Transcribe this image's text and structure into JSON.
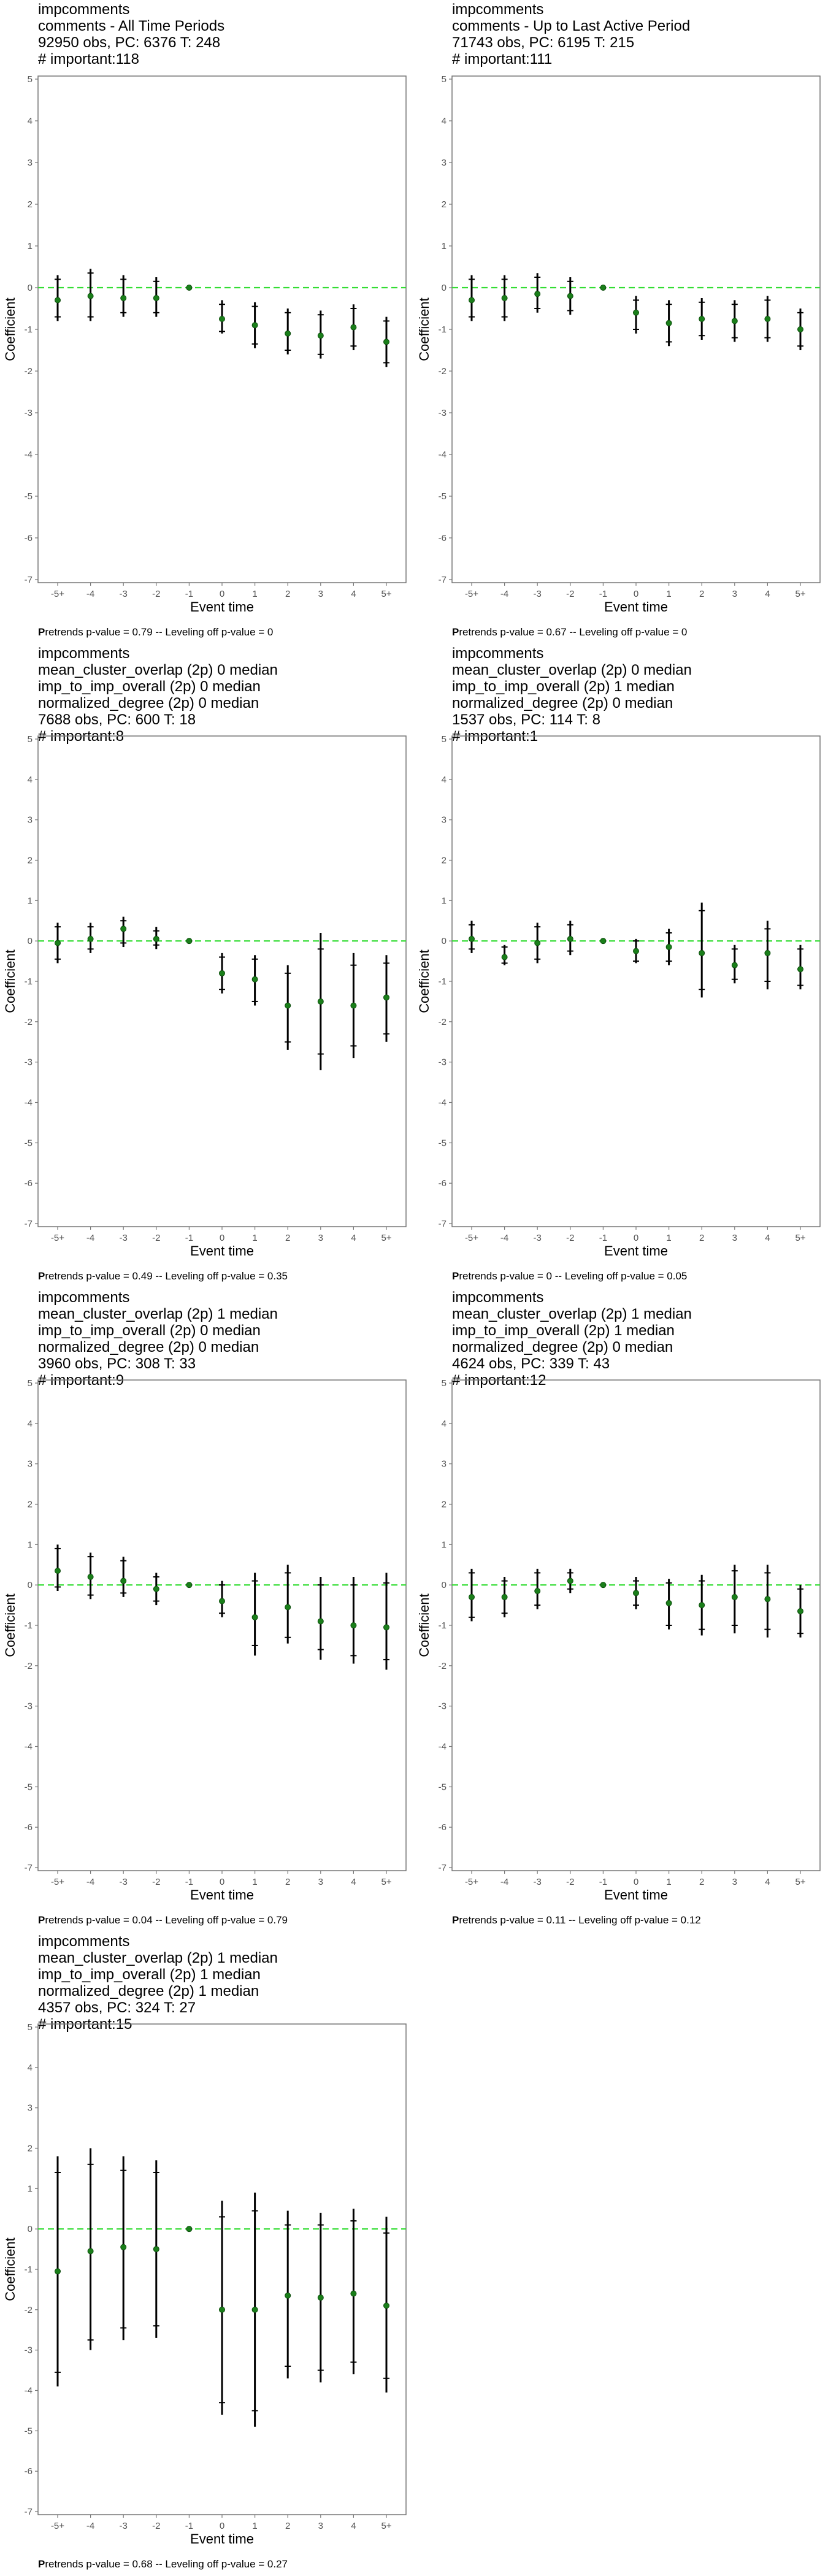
{
  "x_ticks": [
    "-5+",
    "-4",
    "-3",
    "-2",
    "-1",
    "0",
    "1",
    "2",
    "3",
    "4",
    "5+"
  ],
  "xlabel": "Event time",
  "ylabel": "Coefficient",
  "ylim": [
    -7,
    5
  ],
  "colors": {
    "point": "#1a7f1a",
    "zero_line": "#33dd33",
    "bar": "#000000",
    "frame": "#777777"
  },
  "chart_data": [
    {
      "type": "scatter",
      "title_lines": [
        "impcomments",
        "comments - All Time Periods",
        "92950 obs, PC: 6376 T: 248",
        "# important:118"
      ],
      "footer_bold": "P",
      "footer_rest": "retrends p-value = 0.79 -- Leveling off p-value = 0",
      "points": [
        {
          "x": "-5+",
          "y": -0.3,
          "lo95": -0.8,
          "hi95": 0.3,
          "lo90": -0.7,
          "hi90": 0.2
        },
        {
          "x": "-4",
          "y": -0.2,
          "lo95": -0.8,
          "hi95": 0.45,
          "lo90": -0.7,
          "hi90": 0.35
        },
        {
          "x": "-3",
          "y": -0.25,
          "lo95": -0.7,
          "hi95": 0.3,
          "lo90": -0.6,
          "hi90": 0.2
        },
        {
          "x": "-2",
          "y": -0.25,
          "lo95": -0.7,
          "hi95": 0.25,
          "lo90": -0.6,
          "hi90": 0.15
        },
        {
          "x": "-1",
          "y": 0,
          "lo95": 0,
          "hi95": 0,
          "lo90": 0,
          "hi90": 0
        },
        {
          "x": "0",
          "y": -0.75,
          "lo95": -1.1,
          "hi95": -0.3,
          "lo90": -1.05,
          "hi90": -0.4
        },
        {
          "x": "1",
          "y": -0.9,
          "lo95": -1.45,
          "hi95": -0.35,
          "lo90": -1.35,
          "hi90": -0.45
        },
        {
          "x": "2",
          "y": -1.1,
          "lo95": -1.6,
          "hi95": -0.5,
          "lo90": -1.5,
          "hi90": -0.6
        },
        {
          "x": "3",
          "y": -1.15,
          "lo95": -1.7,
          "hi95": -0.55,
          "lo90": -1.6,
          "hi90": -0.65
        },
        {
          "x": "4",
          "y": -0.95,
          "lo95": -1.5,
          "hi95": -0.4,
          "lo90": -1.4,
          "hi90": -0.5
        },
        {
          "x": "5+",
          "y": -1.3,
          "lo95": -1.9,
          "hi95": -0.7,
          "lo90": -1.8,
          "hi90": -0.8
        }
      ]
    },
    {
      "type": "scatter",
      "title_lines": [
        "impcomments",
        "comments - Up to Last Active Period",
        "71743 obs, PC: 6195 T: 215",
        "# important:111"
      ],
      "footer_bold": "P",
      "footer_rest": "retrends p-value = 0.67 -- Leveling off p-value = 0",
      "points": [
        {
          "x": "-5+",
          "y": -0.3,
          "lo95": -0.8,
          "hi95": 0.3,
          "lo90": -0.7,
          "hi90": 0.2
        },
        {
          "x": "-4",
          "y": -0.25,
          "lo95": -0.8,
          "hi95": 0.3,
          "lo90": -0.7,
          "hi90": 0.2
        },
        {
          "x": "-3",
          "y": -0.15,
          "lo95": -0.6,
          "hi95": 0.35,
          "lo90": -0.5,
          "hi90": 0.25
        },
        {
          "x": "-2",
          "y": -0.2,
          "lo95": -0.65,
          "hi95": 0.25,
          "lo90": -0.55,
          "hi90": 0.15
        },
        {
          "x": "-1",
          "y": 0,
          "lo95": 0,
          "hi95": 0,
          "lo90": 0,
          "hi90": 0
        },
        {
          "x": "0",
          "y": -0.6,
          "lo95": -1.1,
          "hi95": -0.2,
          "lo90": -1.0,
          "hi90": -0.3
        },
        {
          "x": "1",
          "y": -0.85,
          "lo95": -1.4,
          "hi95": -0.3,
          "lo90": -1.3,
          "hi90": -0.4
        },
        {
          "x": "2",
          "y": -0.75,
          "lo95": -1.25,
          "hi95": -0.25,
          "lo90": -1.15,
          "hi90": -0.35
        },
        {
          "x": "3",
          "y": -0.8,
          "lo95": -1.3,
          "hi95": -0.3,
          "lo90": -1.2,
          "hi90": -0.4
        },
        {
          "x": "4",
          "y": -0.75,
          "lo95": -1.3,
          "hi95": -0.2,
          "lo90": -1.2,
          "hi90": -0.3
        },
        {
          "x": "5+",
          "y": -1.0,
          "lo95": -1.5,
          "hi95": -0.5,
          "lo90": -1.4,
          "hi90": -0.6
        }
      ]
    },
    {
      "type": "scatter",
      "title_lines": [
        "impcomments",
        "mean_cluster_overlap (2p) 0 median",
        "imp_to_imp_overall (2p) 0 median",
        "normalized_degree (2p) 0 median",
        "7688 obs, PC: 600 T: 18",
        "# important:8"
      ],
      "footer_bold": "P",
      "footer_rest": "retrends p-value = 0.49 -- Leveling off p-value = 0.35",
      "points": [
        {
          "x": "-5+",
          "y": -0.05,
          "lo95": -0.55,
          "hi95": 0.45,
          "lo90": -0.45,
          "hi90": 0.35
        },
        {
          "x": "-4",
          "y": 0.05,
          "lo95": -0.3,
          "hi95": 0.45,
          "lo90": -0.2,
          "hi90": 0.35
        },
        {
          "x": "-3",
          "y": 0.3,
          "lo95": -0.15,
          "hi95": 0.6,
          "lo90": -0.05,
          "hi90": 0.5
        },
        {
          "x": "-2",
          "y": 0.05,
          "lo95": -0.2,
          "hi95": 0.35,
          "lo90": -0.1,
          "hi90": 0.25
        },
        {
          "x": "-1",
          "y": 0,
          "lo95": 0,
          "hi95": 0,
          "lo90": 0,
          "hi90": 0
        },
        {
          "x": "0",
          "y": -0.8,
          "lo95": -1.3,
          "hi95": -0.3,
          "lo90": -1.2,
          "hi90": -0.4
        },
        {
          "x": "1",
          "y": -0.95,
          "lo95": -1.6,
          "hi95": -0.35,
          "lo90": -1.5,
          "hi90": -0.45
        },
        {
          "x": "2",
          "y": -1.6,
          "lo95": -2.7,
          "hi95": -0.6,
          "lo90": -2.5,
          "hi90": -0.8
        },
        {
          "x": "3",
          "y": -1.5,
          "lo95": -3.2,
          "hi95": 0.2,
          "lo90": -2.8,
          "hi90": -0.2
        },
        {
          "x": "4",
          "y": -1.6,
          "lo95": -2.9,
          "hi95": -0.3,
          "lo90": -2.6,
          "hi90": -0.6
        },
        {
          "x": "5+",
          "y": -1.4,
          "lo95": -2.5,
          "hi95": -0.35,
          "lo90": -2.3,
          "hi90": -0.55
        }
      ]
    },
    {
      "type": "scatter",
      "title_lines": [
        "impcomments",
        "mean_cluster_overlap (2p) 0 median",
        "imp_to_imp_overall (2p) 1 median",
        "normalized_degree (2p) 0 median",
        "1537 obs, PC: 114 T: 8",
        "# important:1"
      ],
      "footer_bold": "P",
      "footer_rest": "retrends p-value = 0 -- Leveling off p-value = 0.05",
      "points": [
        {
          "x": "-5+",
          "y": 0.05,
          "lo95": -0.3,
          "hi95": 0.5,
          "lo90": -0.2,
          "hi90": 0.4
        },
        {
          "x": "-4",
          "y": -0.4,
          "lo95": -0.6,
          "hi95": -0.1,
          "lo90": -0.55,
          "hi90": -0.15
        },
        {
          "x": "-3",
          "y": -0.05,
          "lo95": -0.55,
          "hi95": 0.45,
          "lo90": -0.45,
          "hi90": 0.35
        },
        {
          "x": "-2",
          "y": 0.05,
          "lo95": -0.35,
          "hi95": 0.5,
          "lo90": -0.25,
          "hi90": 0.4
        },
        {
          "x": "-1",
          "y": 0,
          "lo95": 0,
          "hi95": 0,
          "lo90": 0,
          "hi90": 0
        },
        {
          "x": "0",
          "y": -0.25,
          "lo95": -0.55,
          "hi95": 0.05,
          "lo90": -0.5,
          "hi90": 0.0
        },
        {
          "x": "1",
          "y": -0.15,
          "lo95": -0.6,
          "hi95": 0.3,
          "lo90": -0.5,
          "hi90": 0.2
        },
        {
          "x": "2",
          "y": -0.3,
          "lo95": -1.4,
          "hi95": 0.95,
          "lo90": -1.2,
          "hi90": 0.75
        },
        {
          "x": "3",
          "y": -0.6,
          "lo95": -1.05,
          "hi95": -0.1,
          "lo90": -0.95,
          "hi90": -0.2
        },
        {
          "x": "4",
          "y": -0.3,
          "lo95": -1.2,
          "hi95": 0.5,
          "lo90": -1.0,
          "hi90": 0.3
        },
        {
          "x": "5+",
          "y": -0.7,
          "lo95": -1.2,
          "hi95": -0.1,
          "lo90": -1.1,
          "hi90": -0.2
        }
      ]
    },
    {
      "type": "scatter",
      "title_lines": [
        "impcomments",
        "mean_cluster_overlap (2p) 1 median",
        "imp_to_imp_overall (2p) 0 median",
        "normalized_degree (2p) 0 median",
        "3960 obs, PC: 308 T: 33",
        "# important:9"
      ],
      "footer_bold": "P",
      "footer_rest": "retrends p-value = 0.04 -- Leveling off p-value = 0.79",
      "points": [
        {
          "x": "-5+",
          "y": 0.35,
          "lo95": -0.15,
          "hi95": 1.0,
          "lo90": -0.05,
          "hi90": 0.9
        },
        {
          "x": "-4",
          "y": 0.2,
          "lo95": -0.35,
          "hi95": 0.8,
          "lo90": -0.25,
          "hi90": 0.7
        },
        {
          "x": "-3",
          "y": 0.1,
          "lo95": -0.3,
          "hi95": 0.7,
          "lo90": -0.2,
          "hi90": 0.6
        },
        {
          "x": "-2",
          "y": -0.1,
          "lo95": -0.5,
          "hi95": 0.3,
          "lo90": -0.4,
          "hi90": 0.2
        },
        {
          "x": "-1",
          "y": 0,
          "lo95": 0,
          "hi95": 0,
          "lo90": 0,
          "hi90": 0
        },
        {
          "x": "0",
          "y": -0.4,
          "lo95": -0.8,
          "hi95": 0.1,
          "lo90": -0.7,
          "hi90": 0.0
        },
        {
          "x": "1",
          "y": -0.8,
          "lo95": -1.75,
          "hi95": 0.3,
          "lo90": -1.5,
          "hi90": 0.1
        },
        {
          "x": "2",
          "y": -0.55,
          "lo95": -1.45,
          "hi95": 0.5,
          "lo90": -1.3,
          "hi90": 0.3
        },
        {
          "x": "3",
          "y": -0.9,
          "lo95": -1.85,
          "hi95": 0.2,
          "lo90": -1.6,
          "hi90": 0.0
        },
        {
          "x": "4",
          "y": -1.0,
          "lo95": -1.95,
          "hi95": 0.2,
          "lo90": -1.75,
          "hi90": 0.0
        },
        {
          "x": "5+",
          "y": -1.05,
          "lo95": -2.1,
          "hi95": 0.3,
          "lo90": -1.85,
          "hi90": 0.05
        }
      ]
    },
    {
      "type": "scatter",
      "title_lines": [
        "impcomments",
        "mean_cluster_overlap (2p) 1 median",
        "imp_to_imp_overall (2p) 1 median",
        "normalized_degree (2p) 0 median",
        "4624 obs, PC: 339 T: 43",
        "# important:12"
      ],
      "footer_bold": "P",
      "footer_rest": "retrends p-value = 0.11 -- Leveling off p-value = 0.12",
      "points": [
        {
          "x": "-5+",
          "y": -0.3,
          "lo95": -0.9,
          "hi95": 0.4,
          "lo90": -0.8,
          "hi90": 0.3
        },
        {
          "x": "-4",
          "y": -0.3,
          "lo95": -0.8,
          "hi95": 0.2,
          "lo90": -0.7,
          "hi90": 0.1
        },
        {
          "x": "-3",
          "y": -0.15,
          "lo95": -0.6,
          "hi95": 0.4,
          "lo90": -0.5,
          "hi90": 0.3
        },
        {
          "x": "-2",
          "y": 0.1,
          "lo95": -0.2,
          "hi95": 0.4,
          "lo90": -0.1,
          "hi90": 0.3
        },
        {
          "x": "-1",
          "y": 0,
          "lo95": 0,
          "hi95": 0,
          "lo90": 0,
          "hi90": 0
        },
        {
          "x": "0",
          "y": -0.2,
          "lo95": -0.6,
          "hi95": 0.2,
          "lo90": -0.5,
          "hi90": 0.1
        },
        {
          "x": "1",
          "y": -0.45,
          "lo95": -1.1,
          "hi95": 0.15,
          "lo90": -1.0,
          "hi90": 0.05
        },
        {
          "x": "2",
          "y": -0.5,
          "lo95": -1.25,
          "hi95": 0.25,
          "lo90": -1.1,
          "hi90": 0.1
        },
        {
          "x": "3",
          "y": -0.3,
          "lo95": -1.2,
          "hi95": 0.5,
          "lo90": -1.0,
          "hi90": 0.35
        },
        {
          "x": "4",
          "y": -0.35,
          "lo95": -1.3,
          "hi95": 0.5,
          "lo90": -1.1,
          "hi90": 0.3
        },
        {
          "x": "5+",
          "y": -0.65,
          "lo95": -1.3,
          "hi95": 0.0,
          "lo90": -1.2,
          "hi90": -0.1
        }
      ]
    },
    {
      "type": "scatter",
      "title_lines": [
        "impcomments",
        "mean_cluster_overlap (2p) 1 median",
        "imp_to_imp_overall (2p) 1 median",
        "normalized_degree (2p) 1 median",
        "4357 obs, PC: 324 T: 27",
        "# important:15"
      ],
      "footer_bold": "P",
      "footer_rest": "retrends p-value = 0.68 -- Leveling off p-value = 0.27",
      "points": [
        {
          "x": "-5+",
          "y": -1.05,
          "lo95": -3.9,
          "hi95": 1.8,
          "lo90": -3.55,
          "hi90": 1.4
        },
        {
          "x": "-4",
          "y": -0.55,
          "lo95": -3.0,
          "hi95": 2.0,
          "lo90": -2.75,
          "hi90": 1.6
        },
        {
          "x": "-3",
          "y": -0.45,
          "lo95": -2.75,
          "hi95": 1.8,
          "lo90": -2.45,
          "hi90": 1.45
        },
        {
          "x": "-2",
          "y": -0.5,
          "lo95": -2.7,
          "hi95": 1.7,
          "lo90": -2.4,
          "hi90": 1.4
        },
        {
          "x": "-1",
          "y": 0,
          "lo95": 0,
          "hi95": 0,
          "lo90": 0,
          "hi90": 0
        },
        {
          "x": "0",
          "y": -2.0,
          "lo95": -4.6,
          "hi95": 0.7,
          "lo90": -4.3,
          "hi90": 0.3
        },
        {
          "x": "1",
          "y": -2.0,
          "lo95": -4.9,
          "hi95": 0.9,
          "lo90": -4.5,
          "hi90": 0.45
        },
        {
          "x": "2",
          "y": -1.65,
          "lo95": -3.7,
          "hi95": 0.45,
          "lo90": -3.4,
          "hi90": 0.1
        },
        {
          "x": "3",
          "y": -1.7,
          "lo95": -3.8,
          "hi95": 0.4,
          "lo90": -3.5,
          "hi90": 0.1
        },
        {
          "x": "4",
          "y": -1.6,
          "lo95": -3.6,
          "hi95": 0.5,
          "lo90": -3.3,
          "hi90": 0.2
        },
        {
          "x": "5+",
          "y": -1.9,
          "lo95": -4.05,
          "hi95": 0.3,
          "lo90": -3.7,
          "hi90": -0.1
        }
      ]
    }
  ]
}
